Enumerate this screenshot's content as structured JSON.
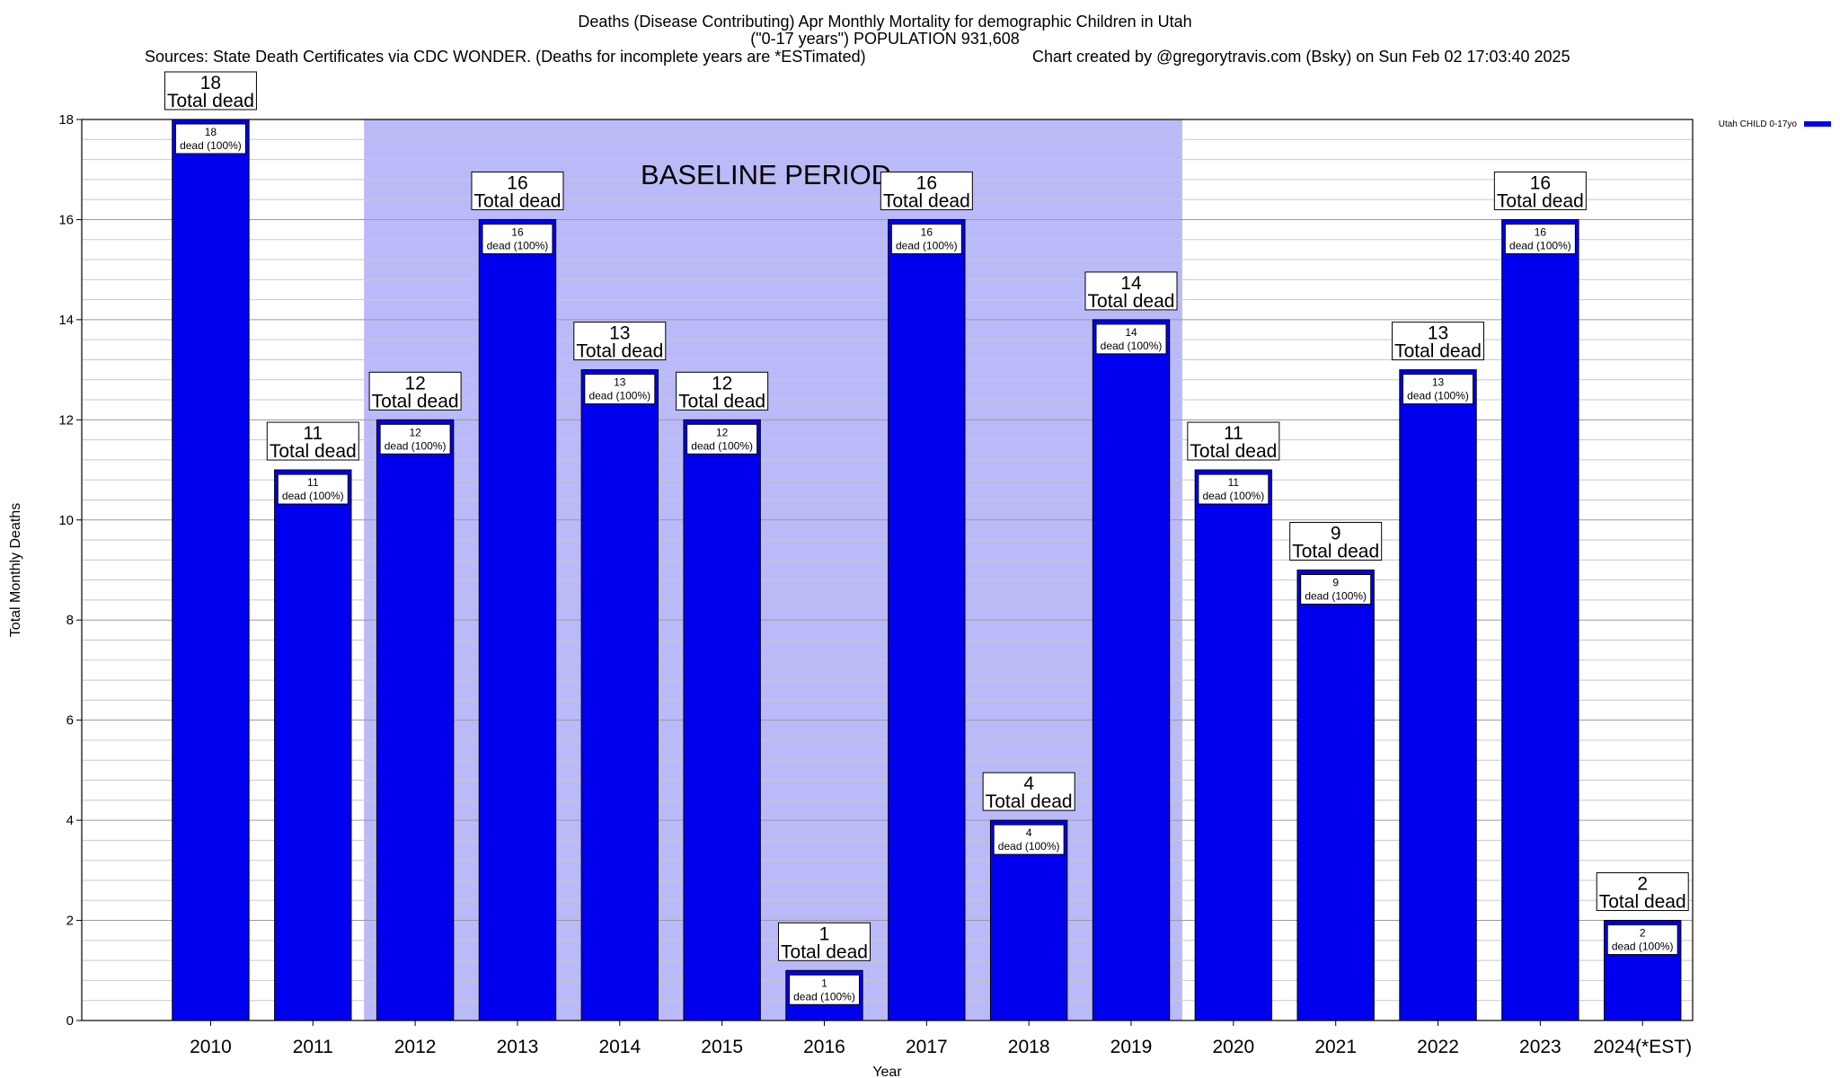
{
  "chart_data": {
    "type": "bar",
    "title": "Deaths (Disease Contributing) Apr Monthly Mortality for demographic Children in Utah",
    "subtitle": "(\"0-17 years\") POPULATION 931,608",
    "sources": "Sources: State Death Certificates via CDC WONDER. (Deaths for incomplete years are *ESTimated)",
    "credit": "Chart created by @gregorytravis.com (Bsky) on Sun Feb 02 17:03:40 2025",
    "xlabel": "Year",
    "ylabel": "Total Monthly Deaths",
    "ylim": [
      0,
      18
    ],
    "yticks": [
      0,
      2,
      4,
      6,
      8,
      10,
      12,
      14,
      16,
      18
    ],
    "grid": true,
    "legend_position": "top-right",
    "categories": [
      "2010",
      "2011",
      "2012",
      "2013",
      "2014",
      "2015",
      "2016",
      "2017",
      "2018",
      "2019",
      "2020",
      "2021",
      "2022",
      "2023",
      "2024(*EST)"
    ],
    "series": [
      {
        "name": "Utah CHILD 0-17yo",
        "color": "#0000ee",
        "values": [
          18,
          11,
          12,
          16,
          13,
          12,
          1,
          16,
          4,
          14,
          11,
          9,
          13,
          16,
          2
        ]
      }
    ],
    "total_label": "Total dead",
    "bar_label_suffix": "dead (100%)",
    "baseline_period": {
      "label": "BASELINE PERIOD",
      "start": "2012",
      "end": "2019",
      "color": "#babaf8"
    }
  }
}
